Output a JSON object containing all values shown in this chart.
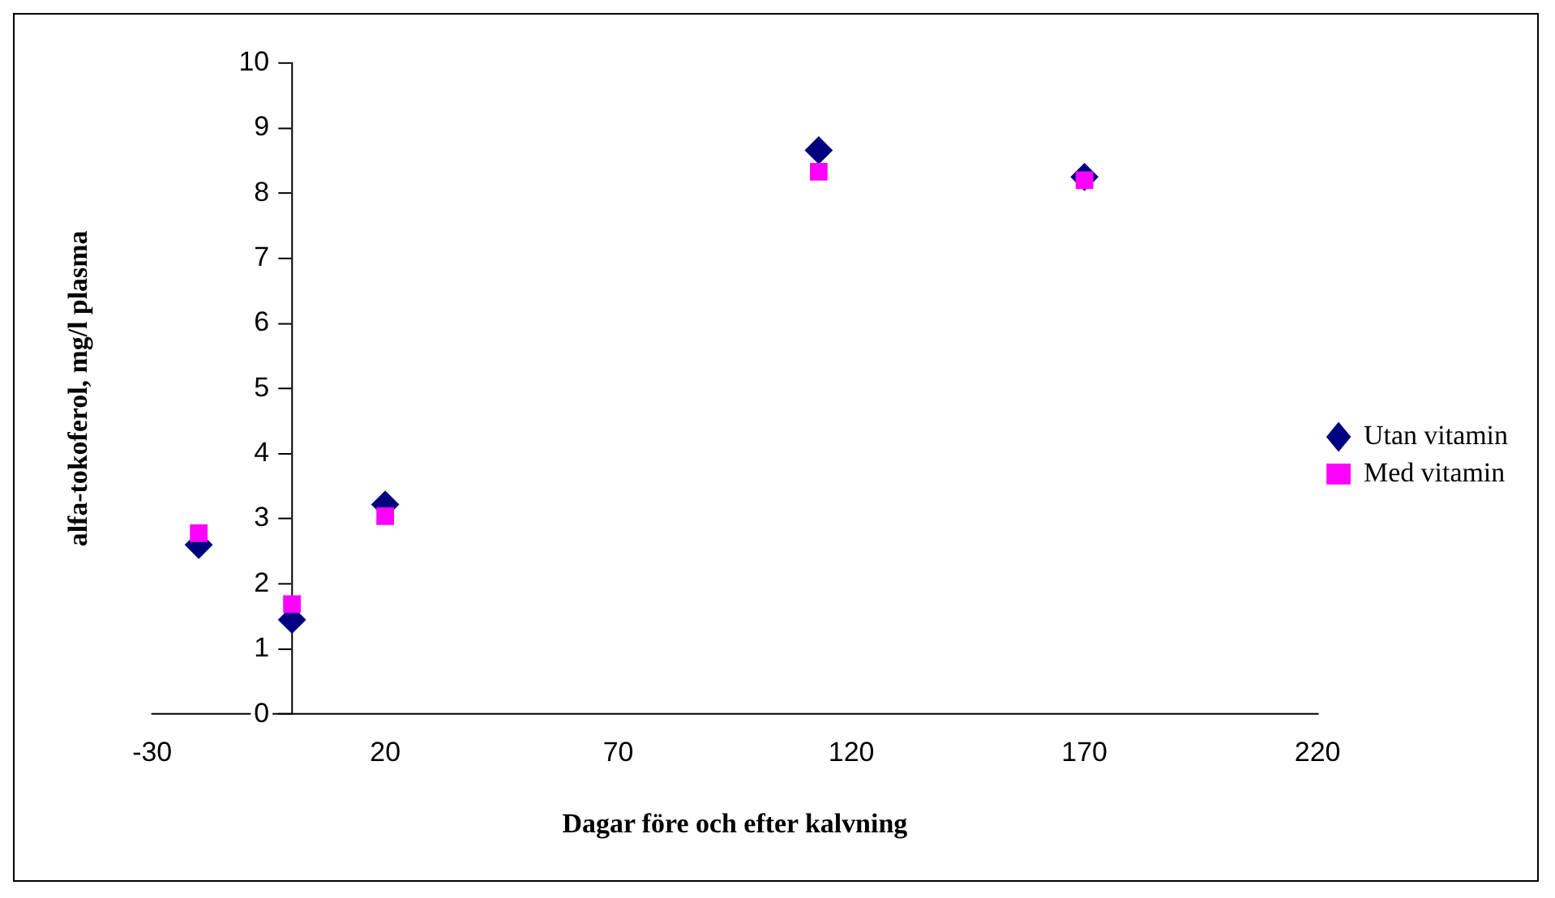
{
  "chart_data": {
    "type": "scatter",
    "xlabel": "Dagar före och efter kalvning",
    "ylabel": "alfa-tokoferol, mg/l plasma",
    "xlim": [
      -30,
      220
    ],
    "xticks": [
      -30,
      20,
      70,
      120,
      170,
      220
    ],
    "ylim": [
      0,
      10
    ],
    "yticks": [
      0,
      1,
      2,
      3,
      4,
      5,
      6,
      7,
      8,
      9,
      10
    ],
    "grid": false,
    "legend": "right",
    "series": [
      {
        "name": "Utan vitamin",
        "color": "#000080",
        "marker": "diamond",
        "x": [
          -20,
          0,
          20,
          113,
          170
        ],
        "values": [
          2.6,
          1.45,
          3.22,
          8.66,
          8.25
        ]
      },
      {
        "name": "Med vitamin",
        "color": "#ff00ff",
        "marker": "square",
        "x": [
          -20,
          0,
          20,
          113,
          170
        ],
        "values": [
          2.78,
          1.69,
          3.04,
          8.33,
          8.2
        ]
      }
    ]
  }
}
